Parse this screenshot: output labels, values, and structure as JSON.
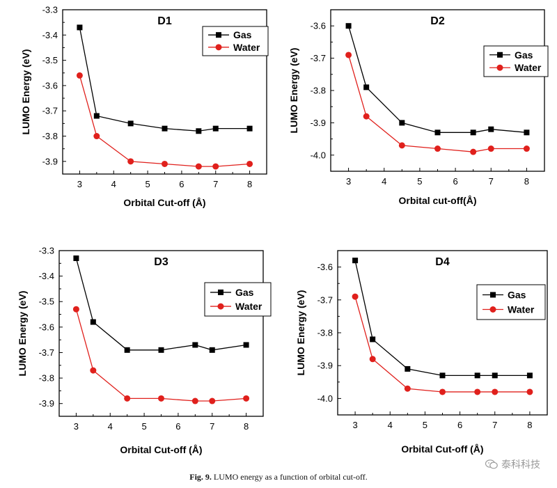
{
  "chart_data": [
    {
      "type": "line",
      "title": "D1",
      "xlabel": "Orbital Cut-off (Å)",
      "ylabel": "LUMO Energy (eV)",
      "x": [
        3,
        3.5,
        4.5,
        5.5,
        6.5,
        7,
        8
      ],
      "xlim": [
        2.5,
        8.5
      ],
      "ylim": [
        -3.95,
        -3.3
      ],
      "xticks": [
        "3",
        "4",
        "5",
        "6",
        "7",
        "8"
      ],
      "yticks": [
        "-3.3",
        "-3.4",
        "-3.5",
        "-3.6",
        "-3.7",
        "-3.8",
        "-3.9"
      ],
      "legend_position": "top-right",
      "series": [
        {
          "name": "Gas",
          "values": [
            -3.37,
            -3.72,
            -3.75,
            -3.77,
            -3.78,
            -3.77,
            -3.77
          ]
        },
        {
          "name": "Water",
          "values": [
            -3.56,
            -3.8,
            -3.9,
            -3.91,
            -3.92,
            -3.92,
            -3.91
          ]
        }
      ]
    },
    {
      "type": "line",
      "title": "D2",
      "xlabel": "Orbital cut-off(Å)",
      "ylabel": "LUMO Energy (eV)",
      "x": [
        3,
        3.5,
        4.5,
        5.5,
        6.5,
        7,
        8
      ],
      "xlim": [
        2.5,
        8.5
      ],
      "ylim": [
        -4.05,
        -3.55
      ],
      "xticks": [
        "3",
        "4",
        "5",
        "6",
        "7",
        "8"
      ],
      "yticks": [
        "-3.6",
        "-3.7",
        "-3.8",
        "-3.9",
        "-4.0"
      ],
      "legend_position": "top-right",
      "series": [
        {
          "name": "Gas",
          "values": [
            -3.6,
            -3.79,
            -3.9,
            -3.93,
            -3.93,
            -3.92,
            -3.93
          ]
        },
        {
          "name": "Water",
          "values": [
            -3.69,
            -3.88,
            -3.97,
            -3.98,
            -3.99,
            -3.98,
            -3.98
          ]
        }
      ]
    },
    {
      "type": "line",
      "title": "D3",
      "xlabel": "Orbital Cut-off (Å)",
      "ylabel": "LUMO Energy (eV)",
      "x": [
        3,
        3.5,
        4.5,
        5.5,
        6.5,
        7,
        8
      ],
      "xlim": [
        2.5,
        8.5
      ],
      "ylim": [
        -3.95,
        -3.3
      ],
      "xticks": [
        "3",
        "4",
        "5",
        "6",
        "7",
        "8"
      ],
      "yticks": [
        "-3.3",
        "-3.4",
        "-3.5",
        "-3.6",
        "-3.7",
        "-3.8",
        "-3.9"
      ],
      "legend_position": "top-right",
      "series": [
        {
          "name": "Gas",
          "values": [
            -3.33,
            -3.58,
            -3.69,
            -3.69,
            -3.67,
            -3.69,
            -3.67
          ]
        },
        {
          "name": "Water",
          "values": [
            -3.53,
            -3.77,
            -3.88,
            -3.88,
            -3.89,
            -3.89,
            -3.88
          ]
        }
      ]
    },
    {
      "type": "line",
      "title": "D4",
      "xlabel": "Orbital Cut-off (Å)",
      "ylabel": "LUMO Energy (eV)",
      "x": [
        3,
        3.5,
        4.5,
        5.5,
        6.5,
        7,
        8
      ],
      "xlim": [
        2.5,
        8.5
      ],
      "ylim": [
        -4.05,
        -3.55
      ],
      "xticks": [
        "3",
        "4",
        "5",
        "6",
        "7",
        "8"
      ],
      "yticks": [
        "-3.6",
        "-3.7",
        "-3.8",
        "-3.9",
        "-4.0"
      ],
      "legend_position": "top-right",
      "series": [
        {
          "name": "Gas",
          "values": [
            -3.58,
            -3.82,
            -3.91,
            -3.93,
            -3.93,
            -3.93,
            -3.93
          ]
        },
        {
          "name": "Water",
          "values": [
            -3.69,
            -3.88,
            -3.97,
            -3.98,
            -3.98,
            -3.98,
            -3.98
          ]
        }
      ]
    }
  ],
  "colors": {
    "gas": "#000000",
    "water": "#e0201c"
  },
  "caption": {
    "label": "Fig. 9.",
    "text": " LUMO energy as a function of orbital cut-off."
  },
  "watermark": {
    "icon": "wechat-icon",
    "text": "泰科科技"
  }
}
